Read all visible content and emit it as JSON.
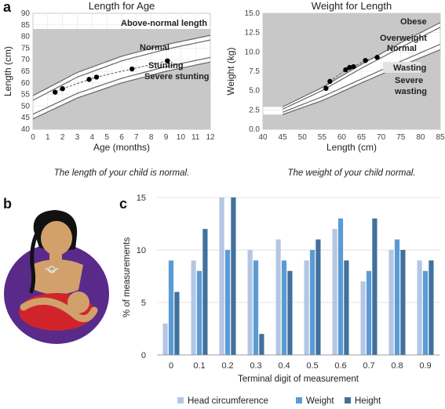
{
  "panels": {
    "a": "a",
    "b": "b",
    "c": "c"
  },
  "captions": {
    "length": "The length of your child is normal.",
    "weight": "The weight of your child normal."
  },
  "colors": {
    "head": "#b3c7e4",
    "weight": "#5b9bd5",
    "height": "#41719c",
    "growth_bg": "#c8c8c8",
    "mother_dress": "#5a2a8a",
    "baby_wrap": "#d0242b",
    "skin": "#d2a06b"
  },
  "chart_data": [
    {
      "type": "scatter",
      "title": "Length for Age",
      "xlabel": "Age (months)",
      "ylabel": "Length (cm)",
      "xlim": [
        0,
        12
      ],
      "ylim": [
        40,
        90
      ],
      "xticks": [
        "0",
        "1",
        "2",
        "3",
        "4",
        "5",
        "6",
        "7",
        "8",
        "9",
        "10",
        "11",
        "12"
      ],
      "yticks": [
        "40",
        "45",
        "50",
        "55",
        "60",
        "65",
        "70",
        "75",
        "80",
        "85",
        "90"
      ],
      "zones": [
        "Above-normal length",
        "Normal",
        "Stunting",
        "Severe stunting"
      ],
      "reference_curves": [
        {
          "x": [
            0,
            3,
            6,
            9,
            12
          ],
          "y": [
            54.5,
            64.5,
            71.5,
            76.5,
            80.5
          ]
        },
        {
          "x": [
            0,
            3,
            6,
            9,
            12
          ],
          "y": [
            52.5,
            62.5,
            69.5,
            74.5,
            78.5
          ]
        },
        {
          "x": [
            0,
            3,
            6,
            9,
            12
          ],
          "y": [
            46.5,
            55.5,
            62.0,
            67.0,
            71.0
          ]
        },
        {
          "x": [
            0,
            3,
            6,
            9,
            12
          ],
          "y": [
            44.5,
            53.5,
            60.0,
            65.0,
            69.0
          ]
        }
      ],
      "points": {
        "x": [
          1.5,
          2,
          3.8,
          4.3,
          6.7,
          9.1
        ],
        "y": [
          56,
          57.5,
          61.5,
          62.5,
          66,
          69.5
        ]
      }
    },
    {
      "type": "scatter",
      "title": "Weight for Length",
      "xlabel": "Length (cm)",
      "ylabel": "Weight (kg)",
      "xlim": [
        40,
        85
      ],
      "ylim": [
        0,
        15
      ],
      "xticks": [
        "40",
        "45",
        "50",
        "55",
        "60",
        "65",
        "70",
        "75",
        "80",
        "85"
      ],
      "yticks": [
        "0.0",
        "2.5",
        "5.0",
        "7.5",
        "10.0",
        "12.5",
        "15.0"
      ],
      "zones": [
        "Obese",
        "Overweight",
        "Normal",
        "Wasting",
        "Severe wasting"
      ],
      "reference_curves": [
        {
          "x": [
            45,
            55,
            65,
            75,
            85
          ],
          "y": [
            2.9,
            5.4,
            8.4,
            11.2,
            13.8
          ]
        },
        {
          "x": [
            45,
            55,
            65,
            75,
            85
          ],
          "y": [
            2.6,
            5.0,
            7.9,
            10.6,
            13.2
          ]
        },
        {
          "x": [
            45,
            55,
            65,
            75,
            85
          ],
          "y": [
            2.2,
            4.2,
            6.5,
            8.8,
            11.0
          ]
        },
        {
          "x": [
            45,
            55,
            65,
            75,
            85
          ],
          "y": [
            1.9,
            3.7,
            6.0,
            8.2,
            10.3
          ]
        }
      ],
      "points": {
        "x": [
          56,
          57,
          61,
          62,
          63,
          66,
          69
        ],
        "y": [
          5.3,
          6.2,
          7.7,
          8.0,
          8.1,
          8.9,
          9.3
        ]
      }
    },
    {
      "type": "bar",
      "xlabel": "Terminal digit of measurement",
      "ylabel": "% of measurements",
      "ylim": [
        0,
        15
      ],
      "yticks": [
        "0",
        "5",
        "10",
        "15"
      ],
      "categories": [
        "0",
        "0.1",
        "0.2",
        "0.3",
        "0.4",
        "0.5",
        "0.6",
        "0.7",
        "0.8",
        "0.9"
      ],
      "legend_position": "bottom",
      "series": [
        {
          "name": "Head circumference",
          "values": [
            3,
            9,
            15,
            10,
            11,
            9,
            12,
            7,
            10,
            9
          ]
        },
        {
          "name": "Weight",
          "values": [
            9,
            8,
            10,
            9,
            9,
            10,
            13,
            8,
            11,
            8
          ]
        },
        {
          "name": "Height",
          "values": [
            6,
            12,
            15,
            2,
            8,
            11,
            9,
            13,
            10,
            9
          ]
        }
      ]
    }
  ]
}
